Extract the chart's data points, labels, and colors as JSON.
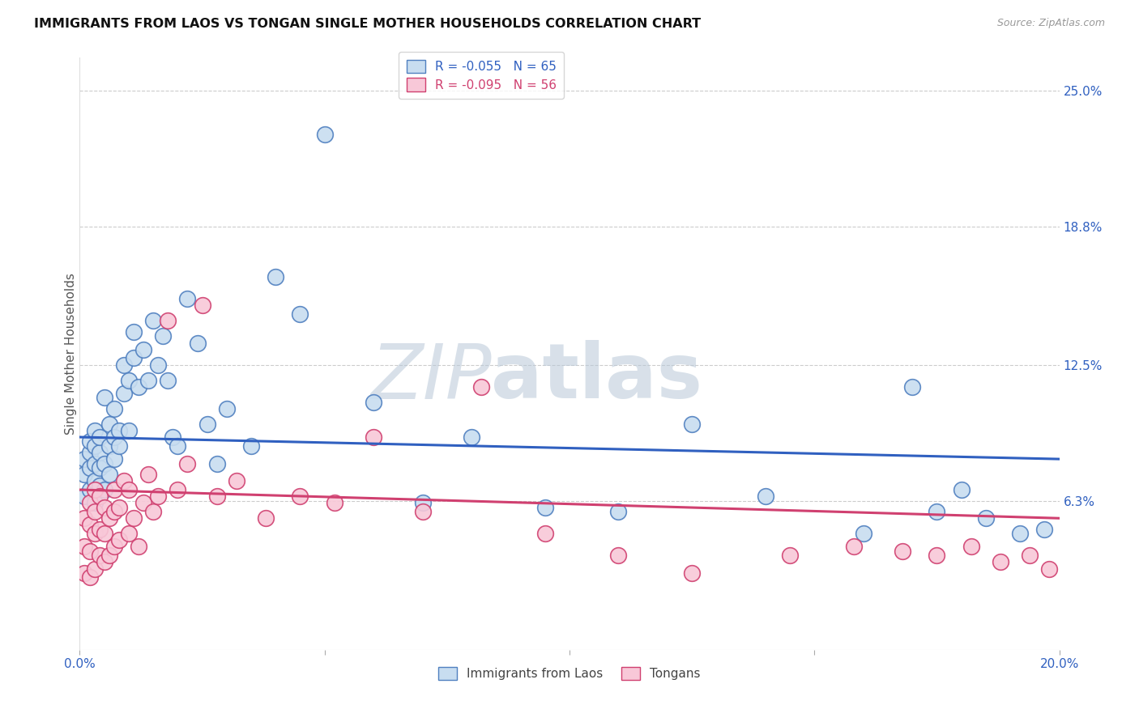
{
  "title": "IMMIGRANTS FROM LAOS VS TONGAN SINGLE MOTHER HOUSEHOLDS CORRELATION CHART",
  "source": "Source: ZipAtlas.com",
  "ylabel": "Single Mother Households",
  "xlim": [
    0,
    0.2
  ],
  "ylim": [
    -0.005,
    0.265
  ],
  "right_ytick_vals": [
    0.063,
    0.125,
    0.188,
    0.25
  ],
  "right_ytick_labels": [
    "6.3%",
    "12.5%",
    "18.8%",
    "25.0%"
  ],
  "legend1_label": "R = -0.055   N = 65",
  "legend2_label": "R = -0.095   N = 56",
  "line1_color": "#3060c0",
  "line2_color": "#d04070",
  "watermark_zip": "ZIP",
  "watermark_atlas": "atlas",
  "watermark_color_zip": "#b8c8d8",
  "watermark_color_atlas": "#b8c8d8",
  "scatter1_color": "#c8ddf0",
  "scatter1_edge": "#5080c0",
  "scatter2_color": "#f8c8d8",
  "scatter2_edge": "#d04070",
  "bottom_label1": "Immigrants from Laos",
  "bottom_label2": "Tongans",
  "blue_x": [
    0.001,
    0.001,
    0.001,
    0.002,
    0.002,
    0.002,
    0.002,
    0.003,
    0.003,
    0.003,
    0.003,
    0.003,
    0.004,
    0.004,
    0.004,
    0.004,
    0.005,
    0.005,
    0.005,
    0.006,
    0.006,
    0.006,
    0.007,
    0.007,
    0.007,
    0.008,
    0.008,
    0.009,
    0.009,
    0.01,
    0.01,
    0.011,
    0.011,
    0.012,
    0.013,
    0.014,
    0.015,
    0.016,
    0.017,
    0.018,
    0.019,
    0.02,
    0.022,
    0.024,
    0.026,
    0.028,
    0.03,
    0.035,
    0.04,
    0.045,
    0.05,
    0.06,
    0.07,
    0.08,
    0.095,
    0.11,
    0.125,
    0.14,
    0.16,
    0.17,
    0.175,
    0.18,
    0.185,
    0.192,
    0.197
  ],
  "blue_y": [
    0.065,
    0.075,
    0.082,
    0.068,
    0.078,
    0.085,
    0.09,
    0.062,
    0.072,
    0.08,
    0.088,
    0.095,
    0.07,
    0.078,
    0.085,
    0.092,
    0.068,
    0.08,
    0.11,
    0.075,
    0.088,
    0.098,
    0.082,
    0.092,
    0.105,
    0.088,
    0.095,
    0.112,
    0.125,
    0.095,
    0.118,
    0.128,
    0.14,
    0.115,
    0.132,
    0.118,
    0.145,
    0.125,
    0.138,
    0.118,
    0.092,
    0.088,
    0.155,
    0.135,
    0.098,
    0.08,
    0.105,
    0.088,
    0.165,
    0.148,
    0.23,
    0.108,
    0.062,
    0.092,
    0.06,
    0.058,
    0.098,
    0.065,
    0.048,
    0.115,
    0.058,
    0.068,
    0.055,
    0.048,
    0.05
  ],
  "pink_x": [
    0.001,
    0.001,
    0.001,
    0.002,
    0.002,
    0.002,
    0.002,
    0.003,
    0.003,
    0.003,
    0.003,
    0.004,
    0.004,
    0.004,
    0.005,
    0.005,
    0.005,
    0.006,
    0.006,
    0.007,
    0.007,
    0.007,
    0.008,
    0.008,
    0.009,
    0.01,
    0.01,
    0.011,
    0.012,
    0.013,
    0.014,
    0.015,
    0.016,
    0.018,
    0.02,
    0.022,
    0.025,
    0.028,
    0.032,
    0.038,
    0.045,
    0.052,
    0.06,
    0.07,
    0.082,
    0.095,
    0.11,
    0.125,
    0.145,
    0.158,
    0.168,
    0.175,
    0.182,
    0.188,
    0.194,
    0.198
  ],
  "pink_y": [
    0.03,
    0.042,
    0.055,
    0.028,
    0.04,
    0.052,
    0.062,
    0.032,
    0.048,
    0.058,
    0.068,
    0.038,
    0.05,
    0.065,
    0.035,
    0.048,
    0.06,
    0.038,
    0.055,
    0.042,
    0.058,
    0.068,
    0.045,
    0.06,
    0.072,
    0.048,
    0.068,
    0.055,
    0.042,
    0.062,
    0.075,
    0.058,
    0.065,
    0.145,
    0.068,
    0.08,
    0.152,
    0.065,
    0.072,
    0.055,
    0.065,
    0.062,
    0.092,
    0.058,
    0.115,
    0.048,
    0.038,
    0.03,
    0.038,
    0.042,
    0.04,
    0.038,
    0.042,
    0.035,
    0.038,
    0.032
  ]
}
